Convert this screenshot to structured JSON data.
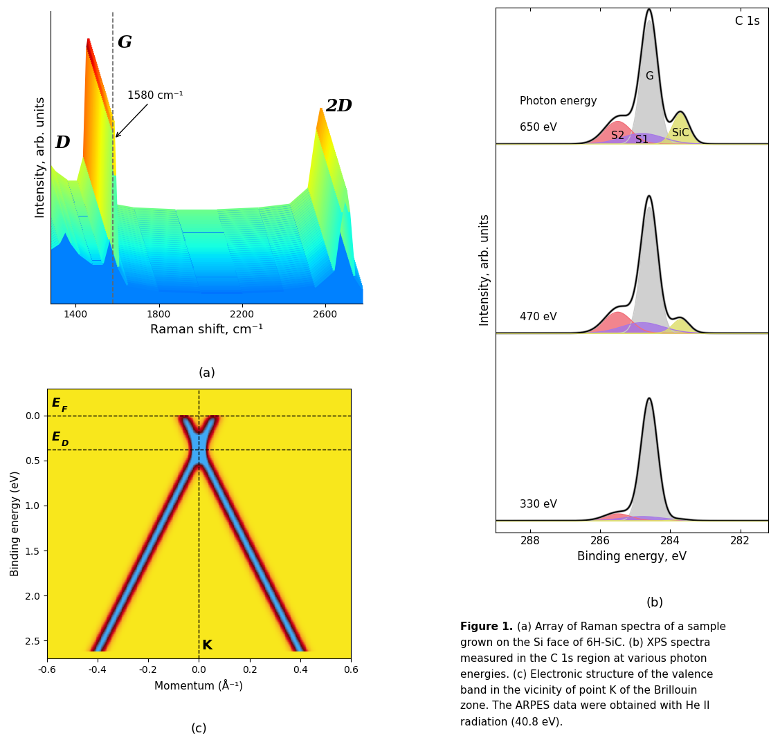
{
  "chart_data": [
    {
      "type": "raman_array",
      "panel_label": "(a)",
      "x_label": "Raman shift, cm⁻¹",
      "y_label": "Intensity, arb. units",
      "xlim": [
        1280,
        2780
      ],
      "xticks": [
        1400,
        1800,
        2200,
        2600
      ],
      "ylim": [
        0,
        1.6
      ],
      "tick_labels": "x",
      "spectra_count": 40,
      "x": [
        1280,
        1320,
        1350,
        1380,
        1420,
        1480,
        1530,
        1560,
        1575,
        1582,
        1590,
        1605,
        1650,
        1800,
        2000,
        2200,
        2400,
        2550,
        2640,
        2680,
        2700,
        2715,
        2740,
        2780
      ],
      "values": [
        0.3,
        0.33,
        0.4,
        0.33,
        0.27,
        0.22,
        0.22,
        0.35,
        0.95,
        1.0,
        0.7,
        0.2,
        0.1,
        0.07,
        0.06,
        0.06,
        0.07,
        0.09,
        0.18,
        0.5,
        0.62,
        0.5,
        0.15,
        0.08
      ],
      "annotations": [
        "D",
        "G",
        "2D"
      ],
      "marker_line": {
        "x": 1580,
        "text": "1580 cm⁻¹"
      }
    },
    {
      "type": "xps",
      "panel_label": "(b)",
      "title": "C 1s",
      "x_label": "Binding energy, eV",
      "y_label": "Intensity, arb. units",
      "xlim": [
        289,
        281.2
      ],
      "xticks": [
        288,
        286,
        284,
        282
      ],
      "ylim": [
        0,
        10
      ],
      "tick_labels": "x",
      "label_prefix": "Photon energy",
      "components": [
        {
          "name": "G",
          "color": "#c8c8c8",
          "position": 284.6,
          "fwhm": 0.55
        },
        {
          "name": "S2",
          "color": "#f0707a",
          "position": 285.5,
          "fwhm": 0.9
        },
        {
          "name": "S1",
          "color": "#a678e6",
          "position": 284.8,
          "fwhm": 1.4
        },
        {
          "name": "SiC",
          "color": "#dede6e",
          "position": 283.7,
          "fwhm": 0.55
        }
      ],
      "spectra": [
        {
          "name": "650 eV",
          "offset": 7.4,
          "heights": [
            2.35,
            0.43,
            0.2,
            0.58
          ]
        },
        {
          "name": "470 eV",
          "offset": 3.8,
          "heights": [
            2.4,
            0.4,
            0.2,
            0.26
          ]
        },
        {
          "name": "330 eV",
          "offset": 0.23,
          "heights": [
            2.25,
            0.13,
            0.08,
            0.02
          ]
        }
      ]
    },
    {
      "type": "arpes",
      "panel_label": "(c)",
      "x_label": "Momentum (Å⁻¹)",
      "y_label": "Binding energy (eV)",
      "xlim": [
        -0.6,
        0.6
      ],
      "xticks": [
        -0.6,
        -0.4,
        -0.2,
        0.0,
        0.2,
        0.4,
        0.6
      ],
      "ylim": [
        2.7,
        -0.3
      ],
      "yticks": [
        0.0,
        0.5,
        1.0,
        1.5,
        2.0,
        2.5
      ],
      "bands": [
        {
          "k": [
            -0.4,
            0.0
          ],
          "energy": [
            2.62,
            0.38
          ]
        },
        {
          "k": [
            0.0,
            0.4
          ],
          "energy": [
            0.38,
            2.62
          ]
        },
        {
          "k": [
            -0.06,
            0.0
          ],
          "energy": [
            0.0,
            0.38
          ]
        },
        {
          "k": [
            0.0,
            0.06
          ],
          "energy": [
            0.38,
            0.0
          ]
        }
      ],
      "fermi_level": 0.0,
      "dirac_point": 0.38,
      "k_point": 0.0,
      "labels": {
        "fermi": "EF",
        "dirac": "ED",
        "point": "K"
      }
    }
  ],
  "caption": {
    "label": "Figure 1.",
    "lines": [
      "(a) Array of Raman spectra of a sample",
      "grown on the Si face of 6H-SiC. (b) XPS spectra",
      "measured in the C 1s region at various photon",
      "energies. (c) Electronic structure of the valence",
      "band in the vicinity of point K of the Brillouin",
      "zone. The ARPES data were obtained with He II",
      "radiation (40.8 eV)."
    ]
  }
}
